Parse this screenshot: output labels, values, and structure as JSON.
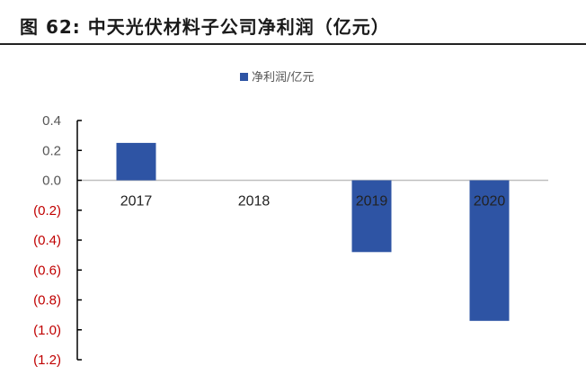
{
  "figure": {
    "title": "图 62:  中天光伏材料子公司净利润（亿元）"
  },
  "chart_data": {
    "type": "bar",
    "categories": [
      "2017",
      "2018",
      "2019",
      "2020"
    ],
    "series": [
      {
        "name": "净利润/亿元",
        "values": [
          0.25,
          0.0,
          -0.48,
          -0.94
        ],
        "color": "#2e54a4"
      }
    ],
    "yticks": [
      {
        "value": 0.4,
        "label": "0.4"
      },
      {
        "value": 0.2,
        "label": "0.2"
      },
      {
        "value": 0.0,
        "label": "0.0"
      },
      {
        "value": -0.2,
        "label": "(0.2)"
      },
      {
        "value": -0.4,
        "label": "(0.4)"
      },
      {
        "value": -0.6,
        "label": "(0.6)"
      },
      {
        "value": -0.8,
        "label": "(0.8)"
      },
      {
        "value": -1.0,
        "label": "(1.0)"
      },
      {
        "value": -1.2,
        "label": "(1.2)"
      }
    ],
    "ylim": [
      -1.2,
      0.4
    ],
    "legend_position": "top-center",
    "grid": false,
    "colors": {
      "positive_tick": "#555555",
      "negative_tick": "#c00000",
      "axis": "#000000",
      "zero_line": "#bfbfbf"
    }
  }
}
